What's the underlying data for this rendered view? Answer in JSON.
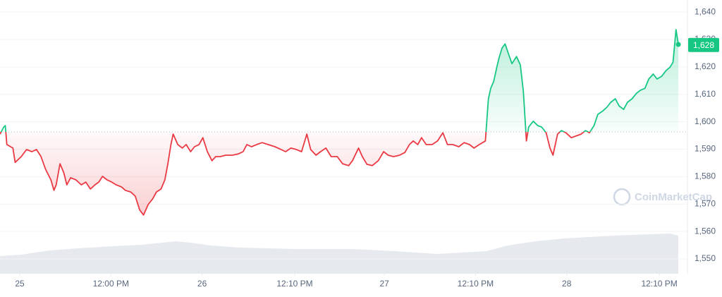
{
  "chart_data": {
    "type": "line",
    "x": [
      -2.6,
      -2.1,
      -1.9,
      -1.7,
      -0.9,
      -0.6,
      0.2,
      0.9,
      1.6,
      2.2,
      2.8,
      3.4,
      4.1,
      4.5,
      4.8,
      5.3,
      5.8,
      6.2,
      6.7,
      7.4,
      8.1,
      8.7,
      9.3,
      9.9,
      10.4,
      10.9,
      11.5,
      12.1,
      12.7,
      13.4,
      13.9,
      14.6,
      15.2,
      15.8,
      16.3,
      16.9,
      17.5,
      18.0,
      18.6,
      19.1,
      19.5,
      19.9,
      20.2,
      20.8,
      21.4,
      21.9,
      22.5,
      23.0,
      23.6,
      24.1,
      24.7,
      25.3,
      25.8,
      26.4,
      27.1,
      28.0,
      28.8,
      29.4,
      29.9,
      30.5,
      31.2,
      31.9,
      32.7,
      33.6,
      34.4,
      35.0,
      35.7,
      36.4,
      37.1,
      37.8,
      38.3,
      39.0,
      39.6,
      40.3,
      41.0,
      41.8,
      42.5,
      43.3,
      43.8,
      44.6,
      45.1,
      45.7,
      46.4,
      47.2,
      47.9,
      48.5,
      49.2,
      50.0,
      50.7,
      51.3,
      51.8,
      52.4,
      52.9,
      53.5,
      54.3,
      55.0,
      55.7,
      56.3,
      57.0,
      57.8,
      58.5,
      59.2,
      59.8,
      60.5,
      61.3,
      61.7,
      62.0,
      62.4,
      62.8,
      63.1,
      63.5,
      63.9,
      64.3,
      64.8,
      65.4,
      65.9,
      66.3,
      66.7,
      67.0,
      67.6,
      68.2,
      68.7,
      69.3,
      69.8,
      70.2,
      70.8,
      71.3,
      71.9,
      72.6,
      73.4,
      73.9,
      74.5,
      75.0,
      75.6,
      76.1,
      76.7,
      77.3,
      77.8,
      78.4,
      78.9,
      79.5,
      80.0,
      80.6,
      81.2,
      81.7,
      82.3,
      82.8,
      83.4,
      83.9,
      84.5,
      85.1,
      85.6,
      86.0,
      86.4,
      86.7
    ],
    "values": [
      1595.5,
      1598.1,
      1598.6,
      1591.7,
      1590.4,
      1585.2,
      1587.3,
      1589.9,
      1589.1,
      1589.9,
      1587.3,
      1582.7,
      1578.8,
      1575,
      1577,
      1584.7,
      1581.4,
      1577,
      1579.6,
      1578.8,
      1577,
      1578,
      1575.5,
      1577,
      1578,
      1580.1,
      1578.8,
      1578,
      1577,
      1576.2,
      1575,
      1574.4,
      1572.9,
      1567.8,
      1566,
      1569.8,
      1571.9,
      1574.4,
      1575.5,
      1578.8,
      1584.7,
      1591.7,
      1595.5,
      1591.7,
      1590.4,
      1591.7,
      1589.1,
      1590.9,
      1591.7,
      1594.2,
      1589.1,
      1585.8,
      1587.3,
      1587.3,
      1587.8,
      1587.8,
      1588.3,
      1589.1,
      1591.7,
      1590.9,
      1591.7,
      1592.4,
      1591.7,
      1590.9,
      1589.9,
      1589.1,
      1590.4,
      1589.9,
      1589.1,
      1595.5,
      1589.9,
      1587.8,
      1589.1,
      1590.4,
      1587.3,
      1587.3,
      1584.7,
      1584,
      1585.8,
      1590.4,
      1587.3,
      1584.5,
      1584,
      1585.8,
      1589.1,
      1587.8,
      1587.3,
      1587.8,
      1588.8,
      1591.7,
      1593,
      1591.7,
      1594.2,
      1591.7,
      1591.7,
      1593,
      1596,
      1591.7,
      1591.7,
      1590.9,
      1592.4,
      1591.7,
      1590.4,
      1591.7,
      1593,
      1608.4,
      1612.2,
      1614.8,
      1619.9,
      1623.3,
      1626.9,
      1628.4,
      1625.1,
      1621.2,
      1623.8,
      1620.7,
      1611,
      1593,
      1598.1,
      1600.2,
      1598.6,
      1598.1,
      1596,
      1590.4,
      1587.8,
      1595.5,
      1596.8,
      1596,
      1594.2,
      1595,
      1595.5,
      1596.8,
      1596,
      1598.6,
      1602.7,
      1603.8,
      1605.3,
      1607.1,
      1608.4,
      1605.8,
      1604.5,
      1607.1,
      1608.4,
      1610.4,
      1611.5,
      1612.2,
      1615.6,
      1617.4,
      1615.6,
      1616.6,
      1618.7,
      1619.9,
      1621.7,
      1633.6,
      1628.2
    ],
    "baseline": 1596.3,
    "colors": {
      "up": "#16c784",
      "down": "#ea3943"
    },
    "xlim": [
      -2.6,
      87.9
    ],
    "ylim": [
      1544.6,
      1644.4
    ],
    "xticks": [
      {
        "value": 0,
        "label": "25"
      },
      {
        "value": 12,
        "label": "12:00 PM"
      },
      {
        "value": 24,
        "label": "26"
      },
      {
        "value": 36.2,
        "label": "12:10 PM"
      },
      {
        "value": 48,
        "label": "27"
      },
      {
        "value": 60,
        "label": "12:10 PM"
      },
      {
        "value": 72,
        "label": "28"
      },
      {
        "value": 84.2,
        "label": "12:10 PM"
      }
    ],
    "yticks": [
      {
        "value": 1550,
        "label": "1,550"
      },
      {
        "value": 1560,
        "label": "1,560"
      },
      {
        "value": 1570,
        "label": "1,570"
      },
      {
        "value": 1580,
        "label": "1,580"
      },
      {
        "value": 1590,
        "label": "1,590"
      },
      {
        "value": 1600,
        "label": "1,600"
      },
      {
        "value": 1610,
        "label": "1,610"
      },
      {
        "value": 1620,
        "label": "1,620"
      },
      {
        "value": 1630,
        "label": "1,630"
      },
      {
        "value": 1640,
        "label": "1,640"
      }
    ],
    "grid": true,
    "price_label": {
      "value": 1628,
      "label": "1,628"
    },
    "watermark": "CoinMarketCap"
  }
}
